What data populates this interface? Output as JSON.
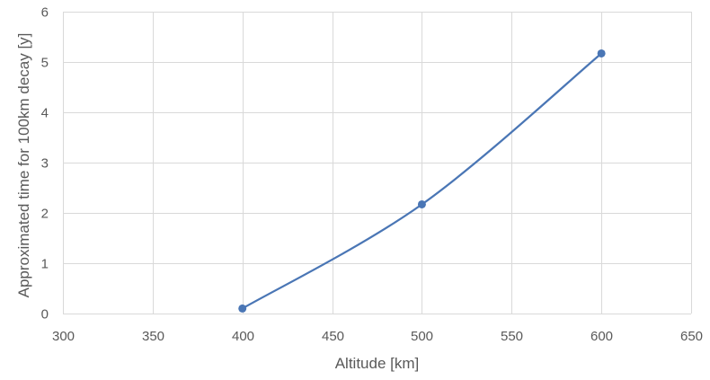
{
  "chart_data": {
    "type": "line",
    "title": "",
    "xlabel": "Altitude [km]",
    "ylabel": "Approximated time for 100km decay [y]",
    "xlim": [
      300,
      650
    ],
    "ylim": [
      0,
      6
    ],
    "x_ticks": [
      300,
      350,
      400,
      450,
      500,
      550,
      600,
      650
    ],
    "y_ticks": [
      0,
      1,
      2,
      3,
      4,
      5,
      6
    ],
    "grid": true,
    "legend": "none",
    "smooth": true,
    "series": [
      {
        "x": [
          400,
          500,
          600
        ],
        "y": [
          0.1,
          2.17,
          5.17
        ],
        "color": "#4a76b5",
        "marker": "circle"
      }
    ],
    "colors": {
      "line": "#4a76b5",
      "grid": "#d9d9d9",
      "text": "#595959"
    }
  }
}
